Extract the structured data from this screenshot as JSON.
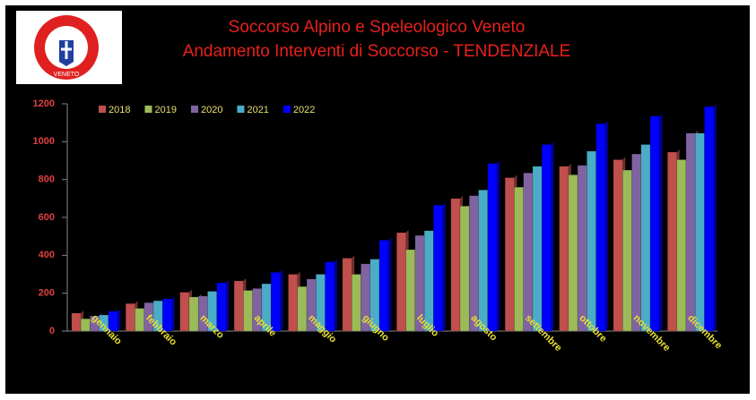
{
  "logo_text": "VENETO",
  "chart_data": {
    "type": "bar",
    "title": "Soccorso Alpino e Speleologico Veneto",
    "subtitle": "Andamento Interventi di Soccorso - TENDENZIALE",
    "categories": [
      "gennaio",
      "febbraio",
      "marzo",
      "aprile",
      "maggio",
      "giugno",
      "luglio",
      "agosto",
      "settembre",
      "ottobre",
      "novembre",
      "dicembre"
    ],
    "series": [
      {
        "name": "2018",
        "color": "#c0504d",
        "values": [
          95,
          145,
          205,
          265,
          300,
          385,
          520,
          700,
          810,
          870,
          905,
          945
        ]
      },
      {
        "name": "2019",
        "color": "#9bbb59",
        "values": [
          65,
          120,
          180,
          215,
          235,
          300,
          430,
          660,
          760,
          825,
          850,
          905
        ]
      },
      {
        "name": "2020",
        "color": "#8064a2",
        "values": [
          80,
          150,
          185,
          225,
          275,
          355,
          505,
          715,
          835,
          875,
          935,
          1045
        ]
      },
      {
        "name": "2021",
        "color": "#4bacc6",
        "values": [
          85,
          160,
          210,
          250,
          300,
          380,
          530,
          745,
          870,
          950,
          985,
          1045
        ]
      },
      {
        "name": "2022",
        "color": "#0000ff",
        "values": [
          105,
          170,
          255,
          310,
          365,
          480,
          665,
          885,
          985,
          1095,
          1135,
          1185
        ]
      }
    ],
    "ylim": [
      0,
      1200
    ],
    "yticks": [
      0,
      200,
      400,
      600,
      800,
      1000,
      1200
    ],
    "legend": "top-left"
  }
}
